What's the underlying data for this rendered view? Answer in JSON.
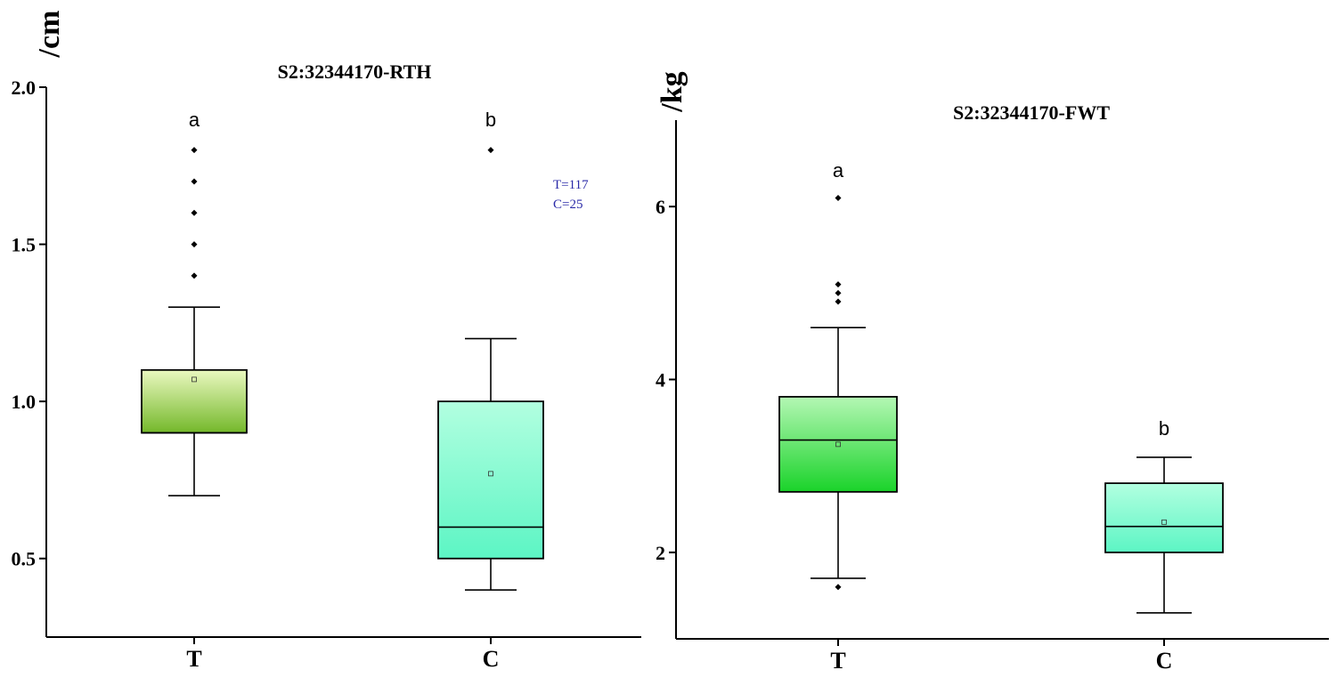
{
  "chart_data": [
    {
      "type": "box",
      "title": "S2:32344170-RTH",
      "ylabel": "/cm",
      "ylim": [
        0.25,
        2.0
      ],
      "yticks": [
        0.5,
        1.0,
        1.5,
        2.0
      ],
      "ytick_labels": [
        "0.5",
        "1.0",
        "1.5",
        "2.0"
      ],
      "categories": [
        "T",
        "C"
      ],
      "boxes": [
        {
          "category": "T",
          "whisker_low": 0.7,
          "q1": 0.9,
          "median": 0.9,
          "q3": 1.1,
          "whisker_high": 1.3,
          "mean": 1.07,
          "outliers": [
            1.4,
            1.5,
            1.6,
            1.7,
            1.8
          ],
          "letter": "a",
          "color_top": "#eaf8c0",
          "color_bottom": "#74b82a"
        },
        {
          "category": "C",
          "whisker_low": 0.4,
          "q1": 0.5,
          "median": 0.6,
          "q3": 1.0,
          "whisker_high": 1.2,
          "mean": 0.77,
          "outliers": [
            1.8
          ],
          "letter": "b",
          "color_top": "#b2ffe0",
          "color_bottom": "#5cf5c4"
        }
      ],
      "annotations": [
        "T=117",
        "C=25"
      ]
    },
    {
      "type": "box",
      "title": "S2:32344170-FWT",
      "ylabel": "/kg",
      "ylim": [
        1.0,
        7.0
      ],
      "yticks": [
        2,
        4,
        6
      ],
      "ytick_labels": [
        "2",
        "4",
        "6"
      ],
      "categories": [
        "T",
        "C"
      ],
      "boxes": [
        {
          "category": "T",
          "whisker_low": 1.7,
          "q1": 2.7,
          "median": 3.3,
          "q3": 3.8,
          "whisker_high": 4.6,
          "mean": 3.25,
          "outliers": [
            1.6,
            4.9,
            5.0,
            5.1,
            6.1
          ],
          "letter": "a",
          "color_top": "#b4f7b4",
          "color_bottom": "#1ad32a"
        },
        {
          "category": "C",
          "whisker_low": 1.3,
          "q1": 2.0,
          "median": 2.3,
          "q3": 2.8,
          "whisker_high": 3.1,
          "mean": 2.35,
          "outliers": [],
          "letter": "b",
          "color_top": "#b2ffe0",
          "color_bottom": "#5cf5c4"
        }
      ],
      "annotations": []
    }
  ]
}
